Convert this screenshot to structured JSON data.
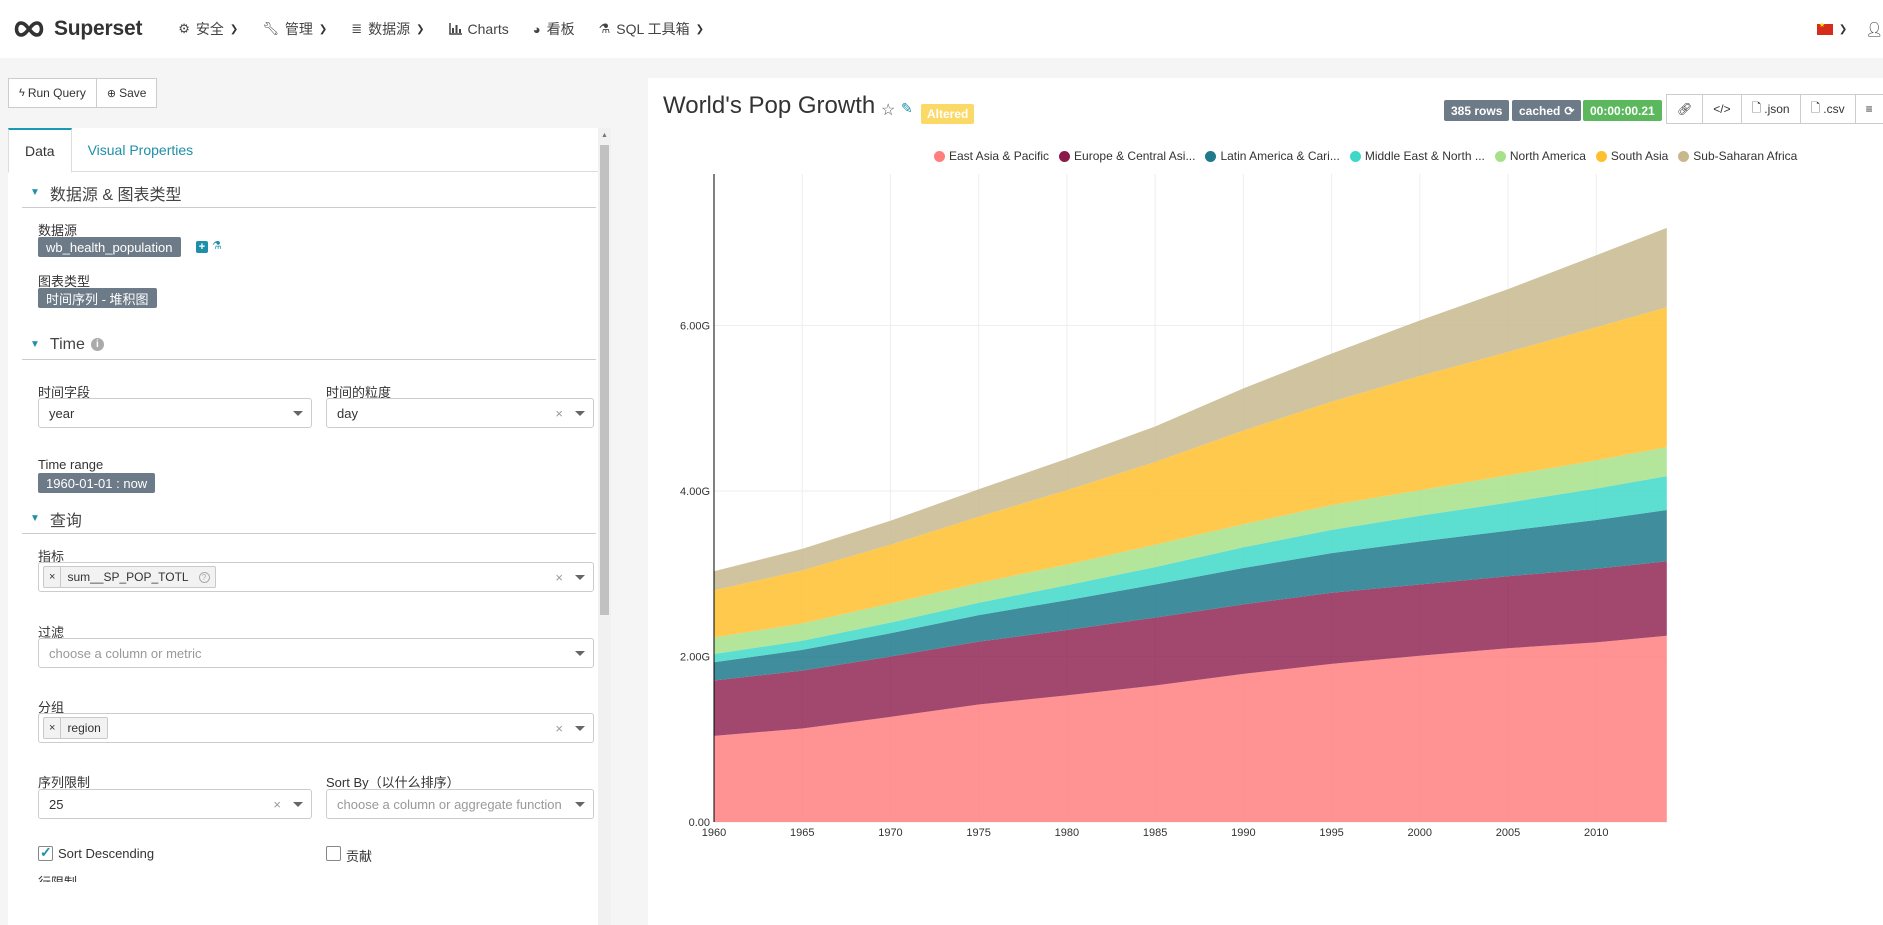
{
  "app": {
    "brand": "Superset",
    "nav": [
      {
        "label": "安全",
        "icon": "cogs-icon",
        "dropdown": true
      },
      {
        "label": "管理",
        "icon": "wrench-icon",
        "dropdown": true
      },
      {
        "label": "数据源",
        "icon": "database-icon",
        "dropdown": true
      },
      {
        "label": "Charts",
        "icon": "bar-chart-icon",
        "dropdown": false
      },
      {
        "label": "看板",
        "icon": "dashboard-icon",
        "dropdown": false
      },
      {
        "label": "SQL 工具箱",
        "icon": "flask-icon",
        "dropdown": true
      }
    ],
    "locale_icon": "china-flag-icon",
    "user_icon": "user-icon"
  },
  "toolbar": {
    "run_query": "Run Query",
    "save": "Save"
  },
  "tabs": [
    {
      "label": "Data",
      "active": true
    },
    {
      "label": "Visual Properties",
      "active": false
    }
  ],
  "sections": {
    "datasource": {
      "title": "数据源 & 图表类型",
      "datasource_label": "数据源",
      "datasource_value": "wb_health_population",
      "viz_label": "图表类型",
      "viz_value": "时间序列 - 堆积图"
    },
    "time": {
      "title": "Time",
      "time_column_label": "时间字段",
      "time_column_value": "year",
      "time_grain_label": "时间的粒度",
      "time_grain_value": "day",
      "time_range_label": "Time range",
      "time_range_value": "1960-01-01 : now"
    },
    "query": {
      "title": "查询",
      "metrics_label": "指标",
      "metrics_value": "sum__SP_POP_TOTL",
      "filters_label": "过滤",
      "filters_placeholder": "choose a column or metric",
      "groupby_label": "分组",
      "groupby_value": "region",
      "limit_label": "序列限制",
      "limit_value": "25",
      "sort_by_label": "Sort By（以什么排序）",
      "sort_by_placeholder": "choose a column or aggregate function",
      "sort_desc_label": "Sort Descending",
      "sort_desc_checked": true,
      "contribution_label": "贡献",
      "contribution_checked": false,
      "row_limit_label": "行限制"
    }
  },
  "chart_header": {
    "title": "World's Pop Growth",
    "altered": "Altered",
    "rows": "385 rows",
    "cached": "cached",
    "duration": "00:00:00.21",
    "json": ".json",
    "csv": ".csv"
  },
  "chart_data": {
    "type": "area",
    "stacked": true,
    "x": [
      1960,
      1965,
      1970,
      1975,
      1980,
      1985,
      1990,
      1995,
      2000,
      2005,
      2010,
      2014
    ],
    "x_ticks": [
      "1960",
      "1965",
      "1970",
      "1975",
      "1980",
      "1985",
      "1990",
      "1995",
      "2000",
      "2005",
      "2010"
    ],
    "y_ticks": [
      "0.00",
      "2.00G",
      "4.00G",
      "6.00G"
    ],
    "ylim": [
      0,
      7.2
    ],
    "y_unit": "G",
    "legend_position": "top-right",
    "grid": true,
    "series": [
      {
        "name": "East Asia & Pacific",
        "legend": "East Asia & Pacific",
        "color": "#ff7f7f",
        "values": [
          1.04,
          1.13,
          1.27,
          1.42,
          1.53,
          1.65,
          1.79,
          1.91,
          2.01,
          2.1,
          2.17,
          2.25
        ]
      },
      {
        "name": "Europe & Central Asia",
        "legend": "Europe & Central Asi...",
        "color": "#8b1a4a",
        "values": [
          0.67,
          0.7,
          0.73,
          0.76,
          0.79,
          0.82,
          0.84,
          0.86,
          0.86,
          0.87,
          0.89,
          0.9
        ]
      },
      {
        "name": "Latin America & Caribbean",
        "legend": "Latin America & Cari...",
        "color": "#1f7a8c",
        "values": [
          0.22,
          0.25,
          0.28,
          0.32,
          0.36,
          0.4,
          0.44,
          0.48,
          0.52,
          0.55,
          0.59,
          0.62
        ]
      },
      {
        "name": "Middle East & North Africa",
        "legend": "Middle East & North ...",
        "color": "#3fd8c8",
        "values": [
          0.1,
          0.11,
          0.13,
          0.15,
          0.18,
          0.21,
          0.25,
          0.28,
          0.31,
          0.34,
          0.38,
          0.41
        ]
      },
      {
        "name": "North America",
        "legend": "North America",
        "color": "#a6e08a",
        "values": [
          0.2,
          0.21,
          0.23,
          0.24,
          0.25,
          0.27,
          0.28,
          0.3,
          0.31,
          0.33,
          0.34,
          0.35
        ]
      },
      {
        "name": "South Asia",
        "legend": "South Asia",
        "color": "#ffbf2e",
        "values": [
          0.57,
          0.64,
          0.71,
          0.8,
          0.9,
          1.0,
          1.13,
          1.25,
          1.38,
          1.49,
          1.61,
          1.69
        ]
      },
      {
        "name": "Sub-Saharan Africa",
        "legend": "Sub-Saharan Africa",
        "color": "#c8b88e",
        "values": [
          0.23,
          0.26,
          0.29,
          0.33,
          0.38,
          0.43,
          0.51,
          0.58,
          0.67,
          0.76,
          0.87,
          0.96
        ]
      }
    ]
  }
}
